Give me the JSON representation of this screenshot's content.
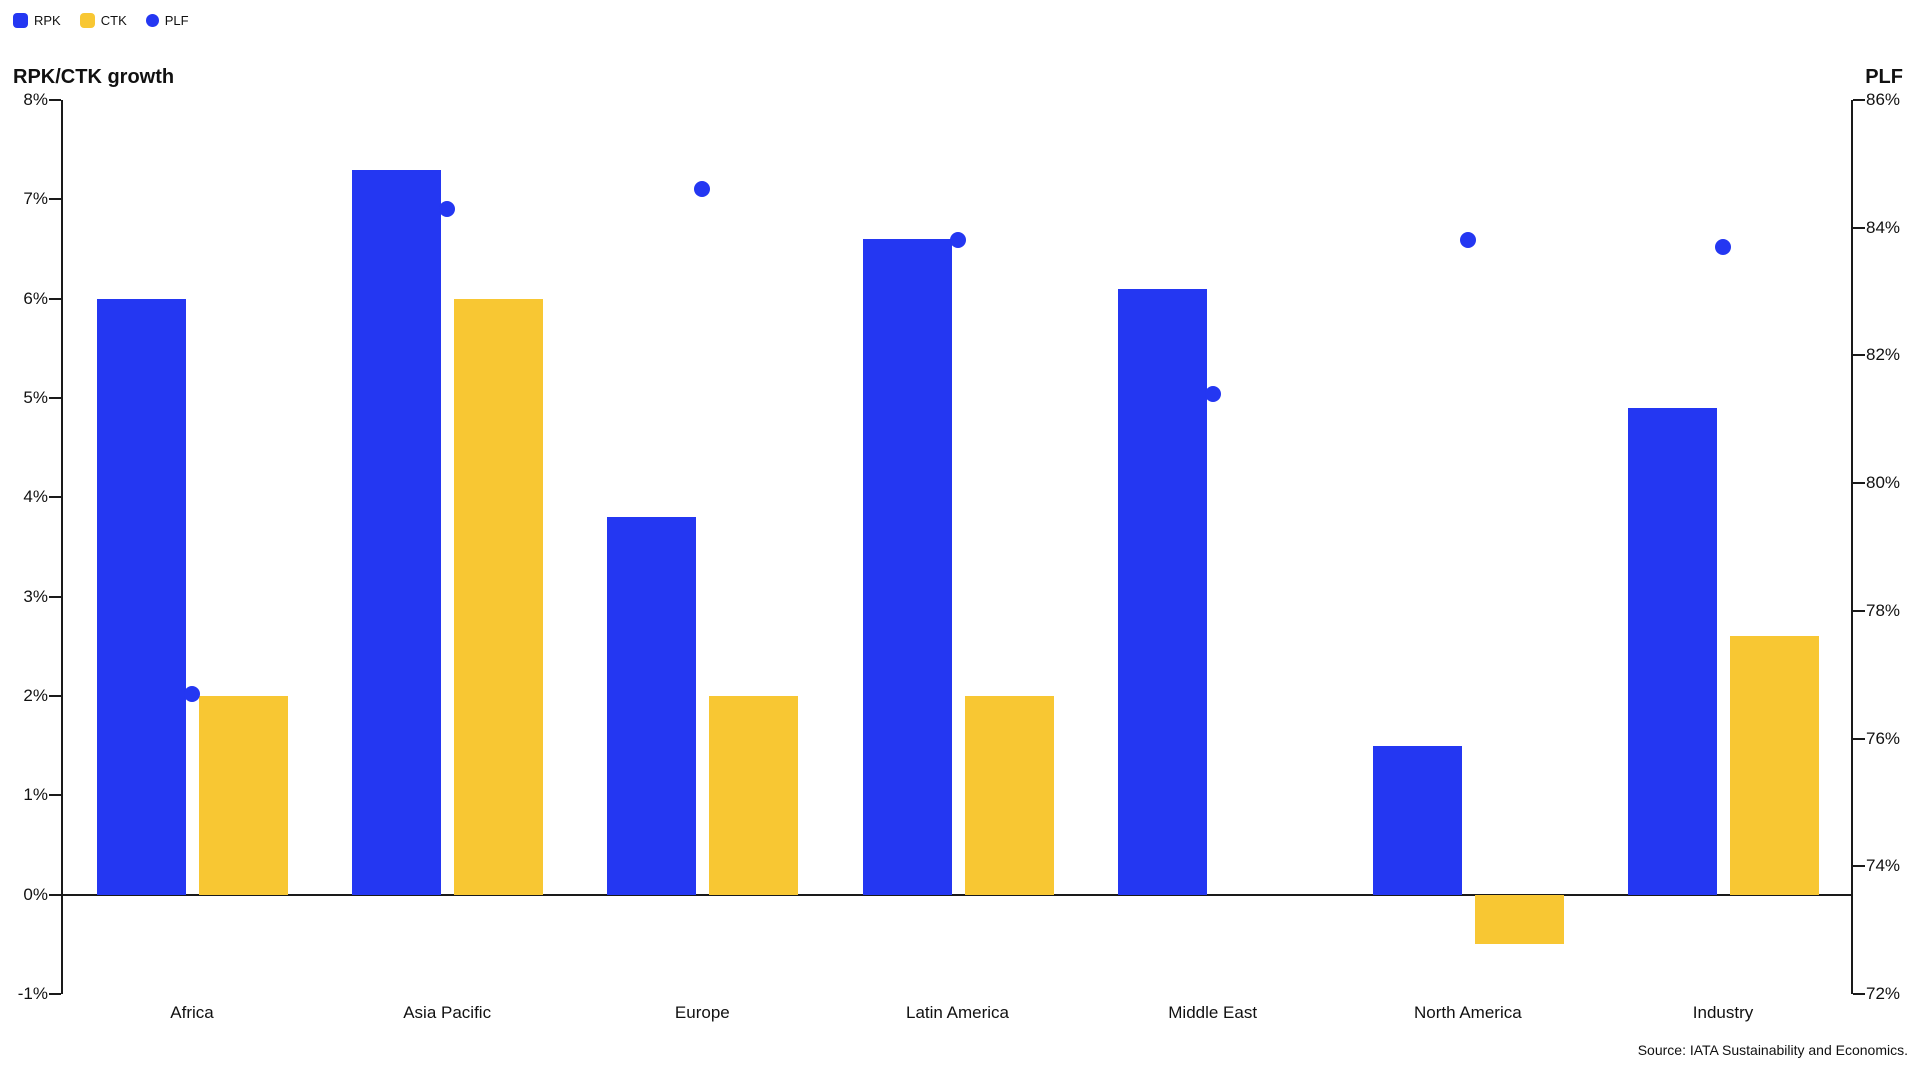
{
  "legend": {
    "items": [
      {
        "label": "RPK",
        "marker": "square",
        "color": "#2437F2"
      },
      {
        "label": "CTK",
        "marker": "square",
        "color": "#F8C733"
      },
      {
        "label": "PLF",
        "marker": "circle",
        "color": "#2437F2"
      }
    ]
  },
  "titles": {
    "left_axis": "RPK/CTK growth",
    "right_axis": "PLF"
  },
  "source_note": "Source: IATA Sustainability and Economics.",
  "colors": {
    "rpk_bar": "#2437F2",
    "ctk_bar": "#F8C733",
    "plf_dot": "#2437F2",
    "axis_line": "#1a1a1a",
    "text": "#111111",
    "background": "#FFFFFF"
  },
  "chart_data": {
    "type": "combo",
    "subtypes": [
      "bar",
      "scatter"
    ],
    "categories": [
      "Africa",
      "Asia Pacific",
      "Europe",
      "Latin America",
      "Middle East",
      "North America",
      "Industry"
    ],
    "series": [
      {
        "name": "RPK",
        "type": "bar",
        "axis": "left",
        "unit": "%",
        "values": [
          6.0,
          7.3,
          3.8,
          6.6,
          6.1,
          1.5,
          4.9
        ]
      },
      {
        "name": "CTK",
        "type": "bar",
        "axis": "left",
        "unit": "%",
        "values": [
          2.0,
          6.0,
          2.0,
          2.0,
          null,
          -0.5,
          2.6
        ]
      },
      {
        "name": "PLF",
        "type": "scatter",
        "axis": "right",
        "unit": "%",
        "values": [
          76.7,
          84.3,
          84.6,
          83.8,
          81.4,
          83.8,
          83.7
        ]
      }
    ],
    "left_axis": {
      "label": "RPK/CTK growth",
      "min": -1,
      "max": 8,
      "tick_step": 1,
      "tick_suffix": "%"
    },
    "right_axis": {
      "label": "PLF",
      "min": 72,
      "max": 86,
      "tick_step": 2,
      "tick_suffix": "%"
    },
    "grid": false,
    "legend_position": "top-left",
    "title": "",
    "xlabel": "",
    "source": "Source: IATA Sustainability and Economics."
  }
}
